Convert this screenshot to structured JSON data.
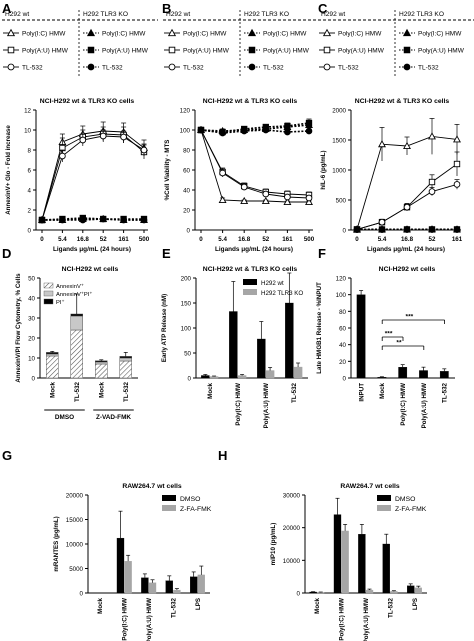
{
  "legend_tables": [
    {
      "panel": "A",
      "headers": [
        "H292 wt",
        "H292 TLR3 KO"
      ],
      "rows": [
        "Poly(I:C) HMW",
        "Poly(A:U) HMW",
        "TL-532"
      ]
    },
    {
      "panel": "B",
      "headers": [
        "H292 wt",
        "H292 TLR3 KO"
      ],
      "rows": [
        "Poly(I:C) HMW",
        "Poly(A:U) HMW",
        "TL-532"
      ]
    },
    {
      "panel": "C",
      "headers": [
        "H292 wt",
        "H292 TLR3 KO"
      ],
      "rows": [
        "Poly(I:C) HMW",
        "Poly(A:U) HMW",
        "TL-532"
      ]
    }
  ],
  "chart_data": [
    {
      "panel": "A",
      "type": "line",
      "title": "NCI-H292 wt & TLR3 KO cells",
      "xlabel": "Ligands μg/mL (24 hours)",
      "ylabel": "AnnexinV+ Glo - Fold increase",
      "x": [
        0,
        5.4,
        16.8,
        52,
        161,
        500
      ],
      "xticks": [
        "0",
        "5.4",
        "16.8",
        "52",
        "161",
        "500"
      ],
      "ylim": [
        0,
        12
      ],
      "yticks": [
        0,
        2,
        4,
        6,
        8,
        10,
        12
      ],
      "series": [
        {
          "name": "Poly(I:C) HMW",
          "group": "H292 wt",
          "marker": "triangle-open",
          "values": [
            1.0,
            8.8,
            9.6,
            9.9,
            9.8,
            8.2
          ],
          "errors": [
            0.2,
            0.8,
            0.8,
            0.9,
            0.9,
            0.8
          ]
        },
        {
          "name": "Poly(A:U) HMW",
          "group": "H292 wt",
          "marker": "square-open",
          "values": [
            1.0,
            8.2,
            9.3,
            9.6,
            9.5,
            7.8
          ],
          "errors": [
            0.2,
            1.0,
            0.7,
            0.7,
            0.8,
            0.7
          ]
        },
        {
          "name": "TL-532",
          "group": "H292 wt",
          "marker": "circle-open",
          "values": [
            1.0,
            7.4,
            9.0,
            9.4,
            9.3,
            8.0
          ],
          "errors": [
            0.2,
            0.6,
            0.6,
            0.6,
            0.6,
            0.6
          ]
        },
        {
          "name": "Poly(I:C) HMW",
          "group": "H292 TLR3 KO",
          "marker": "triangle-filled",
          "values": [
            1.0,
            1.0,
            1.1,
            1.1,
            1.0,
            1.0
          ],
          "errors": [
            0,
            0,
            0,
            0,
            0,
            0
          ]
        },
        {
          "name": "Poly(A:U) HMW",
          "group": "H292 TLR3 KO",
          "marker": "square-filled",
          "values": [
            1.0,
            1.1,
            1.2,
            1.1,
            1.1,
            1.1
          ],
          "errors": [
            0,
            0,
            0,
            0,
            0,
            0
          ]
        },
        {
          "name": "TL-532",
          "group": "H292 TLR3 KO",
          "marker": "circle-filled",
          "values": [
            1.0,
            1.0,
            1.0,
            1.1,
            1.0,
            1.0
          ],
          "errors": [
            0,
            0,
            0,
            0,
            0,
            0
          ]
        }
      ]
    },
    {
      "panel": "B",
      "type": "line",
      "title": "NCI-H292 wt & TLR3 KO cells",
      "xlabel": "Ligands μg/mL (24 hours)",
      "ylabel": "%Cell Viability - MTS",
      "x": [
        0,
        5.4,
        16.8,
        52,
        161,
        500
      ],
      "xticks": [
        "0",
        "5.4",
        "16.8",
        "52",
        "161",
        "500"
      ],
      "ylim": [
        0,
        120
      ],
      "yticks": [
        0,
        20,
        40,
        60,
        80,
        100,
        120
      ],
      "series": [
        {
          "name": "Poly(I:C) HMW",
          "group": "H292 wt",
          "marker": "triangle-open",
          "values": [
            100,
            30,
            29,
            29,
            28,
            28
          ],
          "errors": [
            2,
            2,
            1,
            1,
            1,
            1
          ]
        },
        {
          "name": "Poly(A:U) HMW",
          "group": "H292 wt",
          "marker": "square-open",
          "values": [
            100,
            58,
            44,
            38,
            36,
            35
          ],
          "errors": [
            2,
            4,
            3,
            3,
            3,
            3
          ]
        },
        {
          "name": "TL-532",
          "group": "H292 wt",
          "marker": "circle-open",
          "values": [
            100,
            57,
            43,
            36,
            33,
            32
          ],
          "errors": [
            2,
            4,
            3,
            2,
            2,
            2
          ]
        },
        {
          "name": "Poly(I:C) HMW",
          "group": "H292 TLR3 KO",
          "marker": "triangle-filled",
          "values": [
            100,
            99,
            100,
            101,
            103,
            105
          ],
          "errors": [
            2,
            2,
            2,
            2,
            3,
            3
          ]
        },
        {
          "name": "Poly(A:U) HMW",
          "group": "H292 TLR3 KO",
          "marker": "square-filled",
          "values": [
            100,
            98,
            101,
            103,
            104,
            107
          ],
          "errors": [
            2,
            2,
            2,
            2,
            3,
            4
          ]
        },
        {
          "name": "TL-532",
          "group": "H292 TLR3 KO",
          "marker": "circle-filled",
          "values": [
            100,
            97,
            99,
            100,
            98,
            99
          ],
          "errors": [
            2,
            2,
            2,
            2,
            2,
            2
          ]
        }
      ]
    },
    {
      "panel": "C",
      "type": "line",
      "title": "NCI-H292 wt & TLR3 KO cells",
      "xlabel": "Ligands μg/mL (24 hours)",
      "ylabel": "hIL-6 (pg/mL)",
      "x": [
        0,
        5.4,
        16.8,
        52,
        161
      ],
      "xticks": [
        "0",
        "5.4",
        "16.8",
        "52",
        "161"
      ],
      "ylim": [
        0,
        2000
      ],
      "yticks": [
        0,
        500,
        1000,
        1500,
        2000
      ],
      "series": [
        {
          "name": "Poly(I:C) HMW",
          "group": "H292 wt",
          "marker": "triangle-open",
          "values": [
            10,
            1430,
            1400,
            1560,
            1510
          ],
          "errors": [
            5,
            280,
            150,
            300,
            250
          ]
        },
        {
          "name": "Poly(A:U) HMW",
          "group": "H292 wt",
          "marker": "square-open",
          "values": [
            10,
            130,
            380,
            800,
            1100
          ],
          "errors": [
            5,
            50,
            60,
            120,
            200
          ]
        },
        {
          "name": "TL-532",
          "group": "H292 wt",
          "marker": "circle-open",
          "values": [
            10,
            130,
            380,
            640,
            760
          ],
          "errors": [
            5,
            40,
            60,
            70,
            80
          ]
        },
        {
          "name": "Poly(I:C) HMW",
          "group": "H292 TLR3 KO",
          "marker": "triangle-filled",
          "values": [
            8,
            10,
            10,
            12,
            10
          ],
          "errors": [
            0,
            0,
            0,
            0,
            0
          ]
        },
        {
          "name": "Poly(A:U) HMW",
          "group": "H292 TLR3 KO",
          "marker": "square-filled",
          "values": [
            8,
            9,
            10,
            10,
            10
          ],
          "errors": [
            0,
            0,
            0,
            0,
            0
          ]
        },
        {
          "name": "TL-532",
          "group": "H292 TLR3 KO",
          "marker": "circle-filled",
          "values": [
            8,
            9,
            9,
            10,
            9
          ],
          "errors": [
            0,
            0,
            0,
            0,
            0
          ]
        }
      ]
    },
    {
      "panel": "D",
      "type": "bar",
      "stacked": true,
      "title": "NCI-H292 wt cells",
      "xlabel": "",
      "ylabel": "AnnexinV/PI Flow Cytometry, % Cells",
      "categories": [
        "Mock",
        "TL-532",
        "Mock",
        "TL-532"
      ],
      "groups": [
        {
          "label": "DMSO",
          "categories": [
            0,
            1
          ]
        },
        {
          "label": "Z-VAD-FMK",
          "categories": [
            2,
            3
          ]
        }
      ],
      "ylim": [
        0,
        50
      ],
      "yticks": [
        0,
        10,
        20,
        30,
        40,
        50
      ],
      "legend_position": "top-left",
      "series": [
        {
          "name": "AnnexinV⁺",
          "fill": "hatch",
          "values": [
            11,
            24,
            7,
            8.5
          ]
        },
        {
          "name": "AnnexinV⁺PI⁺",
          "fill": "light-gray",
          "values": [
            1,
            7,
            1,
            1.5
          ]
        },
        {
          "name": "PI⁺",
          "fill": "black",
          "values": [
            0.8,
            1.0,
            0.6,
            0.8
          ]
        }
      ],
      "errors": [
        0.5,
        10,
        0.5,
        2
      ]
    },
    {
      "panel": "E",
      "type": "bar",
      "title": "NCI-H292 wt & TLR3 KO cells",
      "xlabel": "",
      "ylabel": "Early ATP Release (nM)",
      "categories": [
        "Mock",
        "Poly(I:C) HMW",
        "Poly(A:U) HMW",
        "TL-532"
      ],
      "ylim": [
        0,
        200
      ],
      "yticks": [
        0,
        50,
        100,
        150,
        200
      ],
      "legend_position": "top-right",
      "series": [
        {
          "name": "H292 wt",
          "color": "#000000",
          "values": [
            5,
            133,
            78,
            150
          ],
          "errors": [
            2,
            60,
            35,
            60
          ]
        },
        {
          "name": "H292 TLR3 KO",
          "color": "#a6a6a6",
          "values": [
            3,
            5,
            15,
            22
          ],
          "errors": [
            1,
            2,
            6,
            8
          ]
        }
      ]
    },
    {
      "panel": "F",
      "type": "bar",
      "title": "NCI-H292 wt cells",
      "xlabel": "",
      "ylabel": "Late HMGB1 Release - %INPUT",
      "categories": [
        "INPUT",
        "Mock",
        "Poly(I:C) HMW",
        "Poly(A:U) HMW",
        "TL-532"
      ],
      "ylim": [
        0,
        120
      ],
      "yticks": [
        0,
        20,
        40,
        60,
        80,
        100,
        120
      ],
      "series": [
        {
          "name": "",
          "color": "#000000",
          "values": [
            100,
            1,
            13,
            9,
            8
          ],
          "errors": [
            5,
            0.5,
            3,
            4,
            3
          ]
        }
      ],
      "significance": [
        {
          "from": 1,
          "to": 2,
          "label": "***"
        },
        {
          "from": 1,
          "to": 3,
          "label": "**"
        },
        {
          "from": 1,
          "to": 4,
          "label": "***"
        }
      ]
    },
    {
      "panel": "G",
      "type": "bar",
      "title": "RAW264.7 wt cells",
      "xlabel": "",
      "ylabel": "mRANTES (pg/mL)",
      "categories": [
        "Mock",
        "Poly(I:C) HMW",
        "Poly(A:U) HMW",
        "TL-532",
        "LPS"
      ],
      "ylim": [
        0,
        20000
      ],
      "yticks": [
        0,
        5000,
        10000,
        15000,
        20000
      ],
      "legend_position": "top-right",
      "series": [
        {
          "name": "DMSO",
          "color": "#000000",
          "values": [
            0,
            11200,
            3100,
            2500,
            3300
          ],
          "errors": [
            0,
            5500,
            800,
            1000,
            1000
          ]
        },
        {
          "name": "Z-FA-FMK",
          "color": "#a6a6a6",
          "values": [
            0,
            6500,
            2100,
            600,
            3700
          ],
          "errors": [
            0,
            1200,
            600,
            300,
            1800
          ]
        }
      ]
    },
    {
      "panel": "H",
      "type": "bar",
      "title": "RAW264.7 wt cells",
      "xlabel": "",
      "ylabel": "mIP10 (pg/mL)",
      "categories": [
        "Mock",
        "Poly(I:C) HMW",
        "Poly(A:U) HMW",
        "TL-532",
        "LPS"
      ],
      "ylim": [
        0,
        30000
      ],
      "yticks": [
        0,
        10000,
        20000,
        30000
      ],
      "legend_position": "top-right",
      "series": [
        {
          "name": "DMSO",
          "color": "#000000",
          "values": [
            300,
            24000,
            18000,
            15000,
            2200
          ],
          "errors": [
            100,
            5000,
            3000,
            3000,
            600
          ]
        },
        {
          "name": "Z-FA-FMK",
          "color": "#a6a6a6",
          "values": [
            200,
            19000,
            900,
            500,
            1600
          ],
          "errors": [
            100,
            2000,
            300,
            200,
            500
          ]
        }
      ]
    }
  ]
}
